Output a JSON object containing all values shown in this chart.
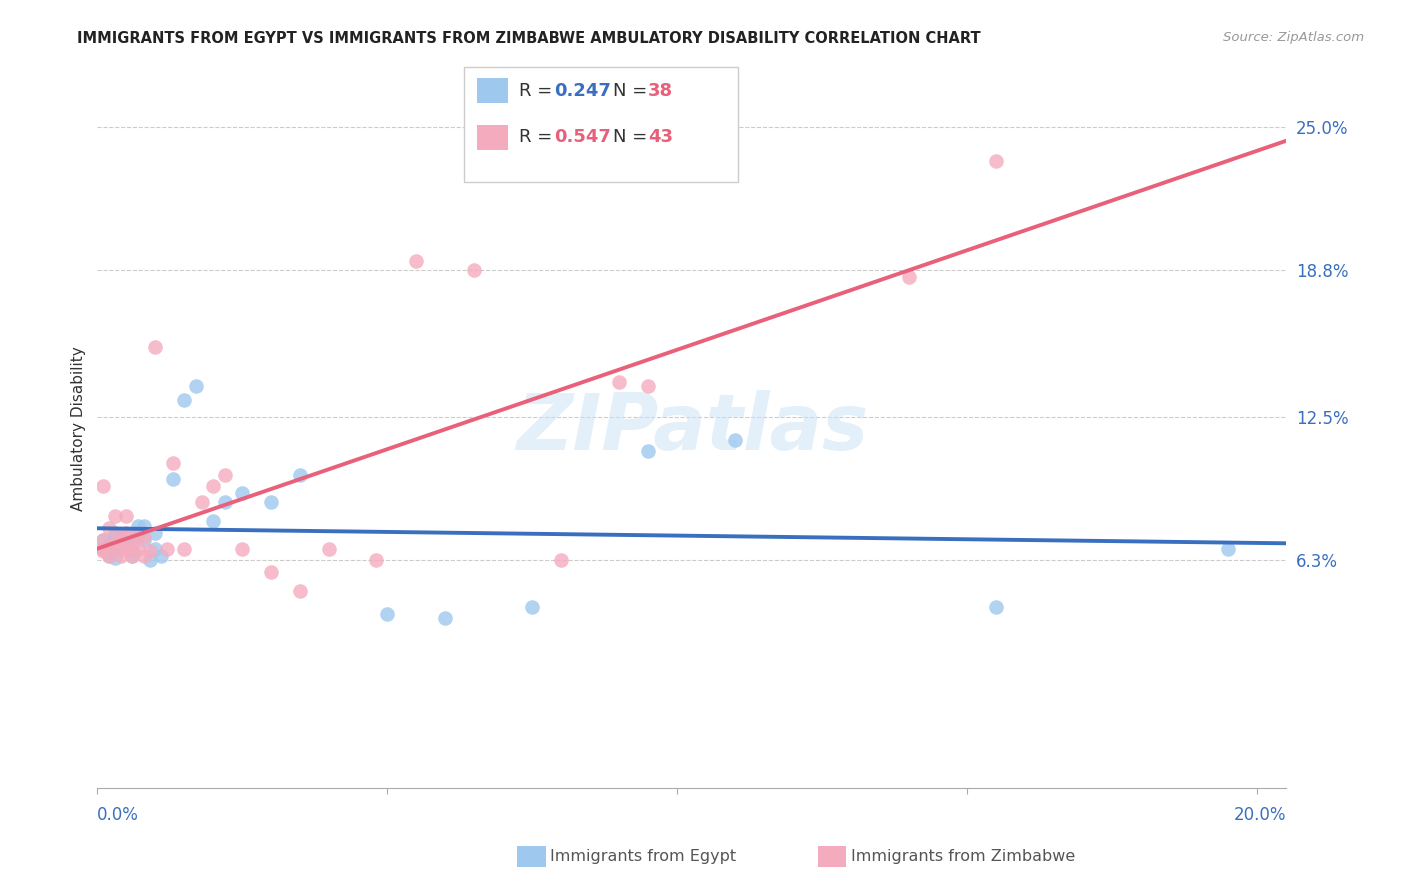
{
  "title": "IMMIGRANTS FROM EGYPT VS IMMIGRANTS FROM ZIMBABWE AMBULATORY DISABILITY CORRELATION CHART",
  "source": "Source: ZipAtlas.com",
  "ylabel": "Ambulatory Disability",
  "ytick_labels": [
    "25.0%",
    "18.8%",
    "12.5%",
    "6.3%"
  ],
  "ytick_values": [
    0.25,
    0.188,
    0.125,
    0.063
  ],
  "xlim": [
    0.0,
    0.205
  ],
  "ylim": [
    -0.035,
    0.275
  ],
  "egypt_R": "0.247",
  "egypt_N": "38",
  "zimbabwe_R": "0.547",
  "zimbabwe_N": "43",
  "egypt_color": "#9EC8EE",
  "zimbabwe_color": "#F4ABBE",
  "egypt_line_color": "#3A6FBF",
  "zimbabwe_line_color": "#E8607A",
  "egypt_x": [
    0.001,
    0.001,
    0.002,
    0.002,
    0.003,
    0.003,
    0.003,
    0.003,
    0.004,
    0.004,
    0.005,
    0.005,
    0.006,
    0.006,
    0.006,
    0.007,
    0.007,
    0.008,
    0.008,
    0.009,
    0.01,
    0.01,
    0.011,
    0.013,
    0.015,
    0.017,
    0.02,
    0.022,
    0.025,
    0.03,
    0.035,
    0.05,
    0.06,
    0.075,
    0.095,
    0.11,
    0.155,
    0.195
  ],
  "egypt_y": [
    0.068,
    0.072,
    0.07,
    0.065,
    0.073,
    0.068,
    0.064,
    0.075,
    0.071,
    0.068,
    0.069,
    0.074,
    0.071,
    0.065,
    0.068,
    0.074,
    0.078,
    0.072,
    0.078,
    0.063,
    0.075,
    0.068,
    0.065,
    0.098,
    0.132,
    0.138,
    0.08,
    0.088,
    0.092,
    0.088,
    0.1,
    0.04,
    0.038,
    0.043,
    0.11,
    0.115,
    0.043,
    0.068
  ],
  "zimbabwe_x": [
    0.001,
    0.001,
    0.001,
    0.001,
    0.002,
    0.002,
    0.002,
    0.003,
    0.003,
    0.004,
    0.004,
    0.004,
    0.004,
    0.005,
    0.005,
    0.005,
    0.006,
    0.006,
    0.006,
    0.007,
    0.007,
    0.008,
    0.008,
    0.009,
    0.01,
    0.012,
    0.013,
    0.015,
    0.018,
    0.02,
    0.022,
    0.025,
    0.03,
    0.035,
    0.04,
    0.048,
    0.055,
    0.065,
    0.08,
    0.09,
    0.095,
    0.14,
    0.155
  ],
  "zimbabwe_y": [
    0.067,
    0.072,
    0.068,
    0.095,
    0.065,
    0.068,
    0.077,
    0.071,
    0.082,
    0.068,
    0.074,
    0.065,
    0.07,
    0.068,
    0.075,
    0.082,
    0.065,
    0.072,
    0.068,
    0.068,
    0.074,
    0.065,
    0.073,
    0.067,
    0.155,
    0.068,
    0.105,
    0.068,
    0.088,
    0.095,
    0.1,
    0.068,
    0.058,
    0.05,
    0.068,
    0.063,
    0.192,
    0.188,
    0.063,
    0.14,
    0.138,
    0.185,
    0.235
  ],
  "legend_r_color": "#3A6FBF",
  "legend_n_color": "#E8607A",
  "legend_zim_r_color": "#E8607A",
  "legend_zim_n_color": "#E8607A"
}
